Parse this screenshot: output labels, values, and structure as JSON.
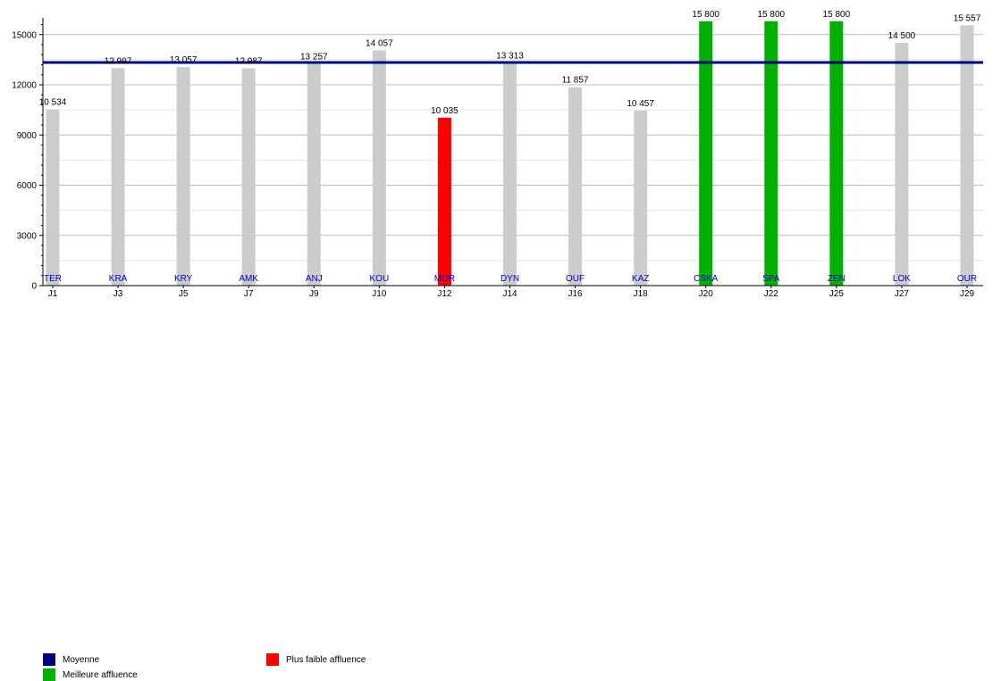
{
  "chart_data": {
    "type": "bar",
    "categories": [
      "J1",
      "J3",
      "J5",
      "J7",
      "J9",
      "J10",
      "J12",
      "J14",
      "J16",
      "J18",
      "J20",
      "J22",
      "J25",
      "J27",
      "J29"
    ],
    "opponents": [
      "TER",
      "KRA",
      "KRY",
      "AMK",
      "ANJ",
      "KOU",
      "MOR",
      "DYN",
      "OUF",
      "KAZ",
      "CSKA",
      "SPA",
      "ZEN",
      "LOK",
      "OUR"
    ],
    "values": [
      10534,
      12997,
      13057,
      12987,
      13257,
      14057,
      10035,
      13313,
      11857,
      10457,
      15800,
      15800,
      15800,
      14500,
      15557
    ],
    "value_labels": [
      "10 534",
      "12 997",
      "13 057",
      "12 987",
      "13 257",
      "14 057",
      "10 035",
      "13 313",
      "11 857",
      "10 457",
      "15 800",
      "15 800",
      "15 800",
      "14 500",
      "15 557"
    ],
    "bar_kinds": [
      "normal",
      "normal",
      "normal",
      "normal",
      "normal",
      "normal",
      "lowest",
      "normal",
      "normal",
      "normal",
      "highest",
      "highest",
      "highest",
      "normal",
      "normal"
    ],
    "average": 13333,
    "ylim": [
      0,
      16000
    ],
    "yticks": [
      0,
      3000,
      6000,
      9000,
      12000,
      15000
    ],
    "ytick_labels": [
      "0",
      "3000",
      "6000",
      "9000",
      "12000",
      "15000"
    ],
    "grid": true,
    "legend_position": "bottom-left",
    "colors": {
      "normal": "#cccccc",
      "lowest": "#ff0000",
      "highest": "#00b200",
      "average": "#000080",
      "opponent_text": "#0000cc",
      "grid": "#d0d0d0"
    },
    "legend": {
      "average": "Moyenne",
      "highest": "Meilleure affluence",
      "lowest": "Plus faible affluence"
    }
  }
}
